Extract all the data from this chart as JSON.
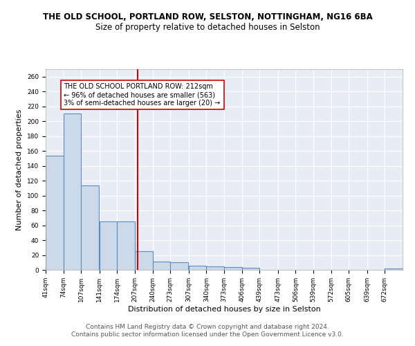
{
  "title": "THE OLD SCHOOL, PORTLAND ROW, SELSTON, NOTTINGHAM, NG16 6BA",
  "subtitle": "Size of property relative to detached houses in Selston",
  "xlabel": "Distribution of detached houses by size in Selston",
  "ylabel": "Number of detached properties",
  "bin_edges": [
    41,
    74,
    107,
    141,
    174,
    207,
    240,
    273,
    307,
    340,
    373,
    406,
    439,
    473,
    506,
    539,
    572,
    605,
    639,
    672,
    705
  ],
  "bin_counts": [
    154,
    210,
    114,
    65,
    65,
    25,
    11,
    10,
    6,
    5,
    4,
    3,
    0,
    0,
    0,
    0,
    0,
    0,
    0,
    2
  ],
  "bar_color": "#ccd9e8",
  "bar_edge_color": "#5b8dc0",
  "bar_linewidth": 0.8,
  "vline_x": 212,
  "vline_color": "#cc0000",
  "annotation_text": "THE OLD SCHOOL PORTLAND ROW: 212sqm\n← 96% of detached houses are smaller (563)\n3% of semi-detached houses are larger (20) →",
  "annotation_box_color": "#ffffff",
  "annotation_box_edge": "#cc0000",
  "ylim": [
    0,
    270
  ],
  "yticks": [
    0,
    20,
    40,
    60,
    80,
    100,
    120,
    140,
    160,
    180,
    200,
    220,
    240,
    260
  ],
  "bg_color": "#e8edf5",
  "grid_color": "#ffffff",
  "footer_text": "Contains HM Land Registry data © Crown copyright and database right 2024.\nContains public sector information licensed under the Open Government Licence v3.0.",
  "title_fontsize": 8.5,
  "subtitle_fontsize": 8.5,
  "xlabel_fontsize": 8,
  "ylabel_fontsize": 8,
  "tick_fontsize": 6.5,
  "annotation_fontsize": 7,
  "footer_fontsize": 6.5
}
